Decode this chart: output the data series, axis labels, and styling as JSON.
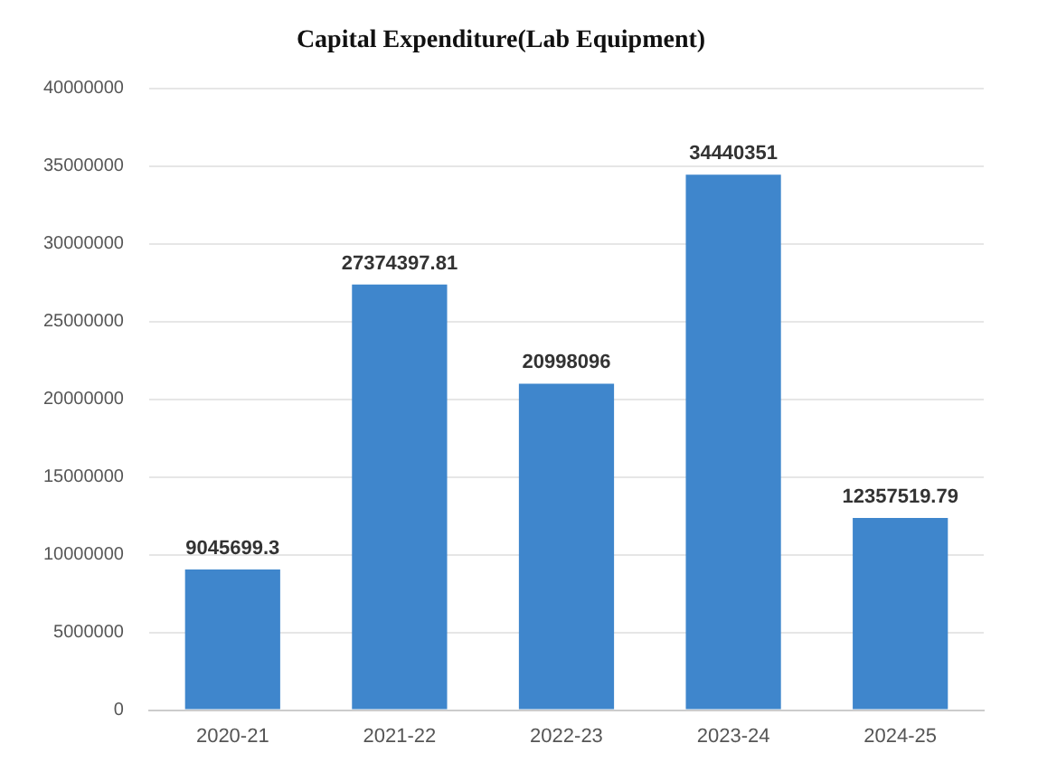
{
  "chart_data": {
    "type": "bar",
    "title": "Capital Expenditure(Lab Equipment)",
    "categories": [
      "2020-21",
      "2021-22",
      "2022-23",
      "2023-24",
      "2024-25"
    ],
    "values": [
      9045699.3,
      27374397.81,
      20998096,
      34440351,
      12357519.79
    ],
    "color": "#3f86cc",
    "ylim": [
      0,
      40000000
    ],
    "yticks": [
      0,
      5000000,
      10000000,
      15000000,
      20000000,
      25000000,
      30000000,
      35000000,
      40000000
    ],
    "grid": "y",
    "data_labels": true
  }
}
